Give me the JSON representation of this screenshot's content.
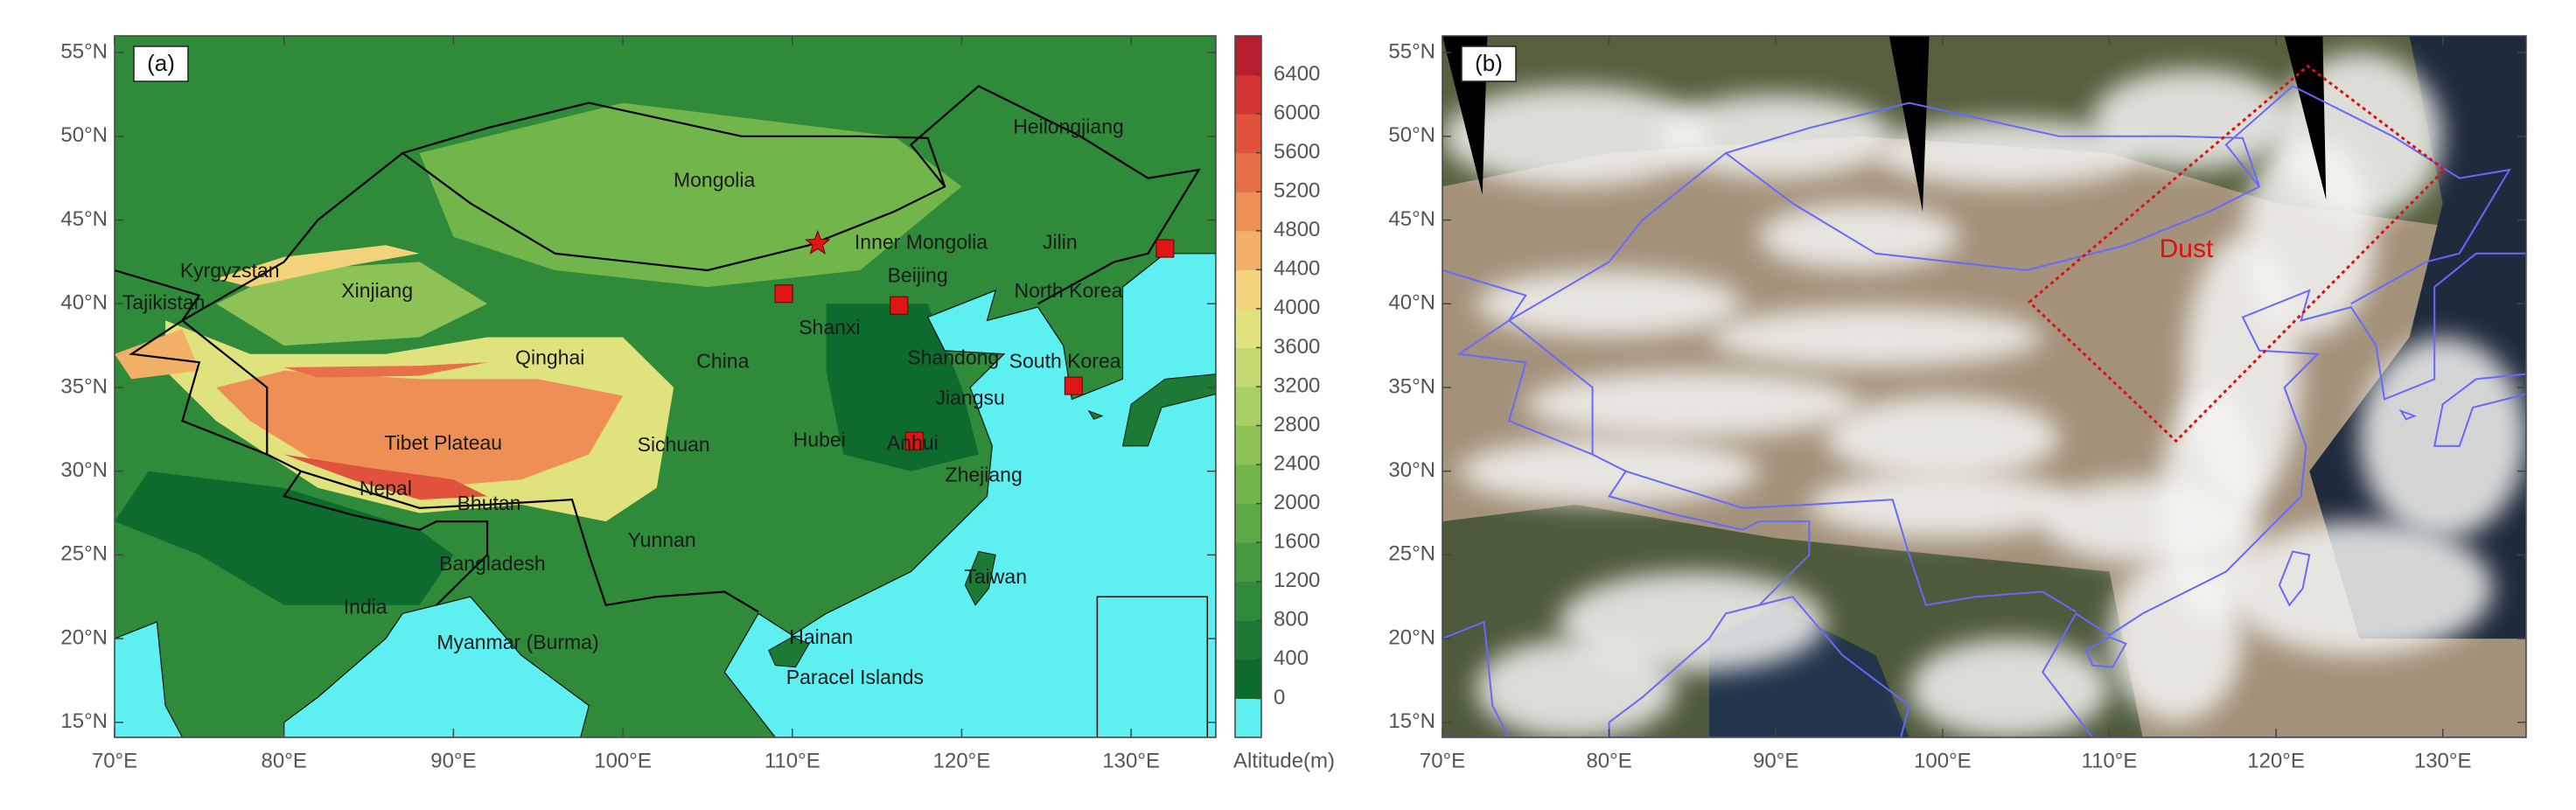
{
  "panels": [
    {
      "tag": "(a)",
      "xlim": [
        70,
        135
      ],
      "ylim": [
        14.1,
        56
      ],
      "xticks": [
        {
          "value": 70,
          "label": "70°E"
        },
        {
          "value": 80,
          "label": "80°E"
        },
        {
          "value": 90,
          "label": "90°E"
        },
        {
          "value": 100,
          "label": "100°E"
        },
        {
          "value": 110,
          "label": "110°E"
        },
        {
          "value": 120,
          "label": "120°E"
        },
        {
          "value": 130,
          "label": "130°E"
        }
      ],
      "yticks": [
        {
          "value": 15,
          "label": "15°N"
        },
        {
          "value": 20,
          "label": "20°N"
        },
        {
          "value": 25,
          "label": "25°N"
        },
        {
          "value": 30,
          "label": "30°N"
        },
        {
          "value": 35,
          "label": "35°N"
        },
        {
          "value": 40,
          "label": "40°N"
        },
        {
          "value": 45,
          "label": "45°N"
        },
        {
          "value": 50,
          "label": "50°N"
        },
        {
          "value": 55,
          "label": "55°N"
        }
      ],
      "places": [
        "Mongolia",
        "Heilongjiang",
        "Kyrgyzstan",
        "Tajikistan",
        "Xinjiang",
        "Inner Mongolia",
        "Jilin",
        "Beijing",
        "North Korea",
        "Shanxi",
        "Qinghai",
        "China",
        "Shandong",
        "South Korea",
        "Jiangsu",
        "Tibet Plateau",
        "Sichuan",
        "Hubei",
        "Anhui",
        "Zhejiang",
        "Nepal",
        "Bhutan",
        "Yunnan",
        "Bangladesh",
        "Taiwan",
        "India",
        "Myanmar (Burma)",
        "Hainan",
        "Paracel Islands"
      ],
      "colorbar": {
        "label": "Altitude(m)",
        "lim": [
          -400,
          6800
        ],
        "ticks": [
          0,
          400,
          800,
          1200,
          1600,
          2000,
          2400,
          2800,
          3200,
          3600,
          4000,
          4400,
          4800,
          5200,
          5600,
          6000,
          6400
        ],
        "colors": [
          "#5ef0f0",
          "#0e6b2e",
          "#1d7a34",
          "#2f8a3a",
          "#45993f",
          "#5ba845",
          "#72b54b",
          "#8cc256",
          "#a8cf62",
          "#c4da70",
          "#e0e27e",
          "#f2d27a",
          "#f2b066",
          "#ee9055",
          "#e87048",
          "#e0523c",
          "#d23434",
          "#b81f2e"
        ]
      }
    },
    {
      "tag": "(b)",
      "xlim": [
        70,
        135
      ],
      "ylim": [
        14.1,
        56
      ],
      "xticks": [
        {
          "value": 70,
          "label": "70°E"
        },
        {
          "value": 80,
          "label": "80°E"
        },
        {
          "value": 90,
          "label": "90°E"
        },
        {
          "value": 100,
          "label": "100°E"
        },
        {
          "value": 110,
          "label": "110°E"
        },
        {
          "value": 120,
          "label": "120°E"
        },
        {
          "value": 130,
          "label": "130°E"
        }
      ],
      "yticks": [
        {
          "value": 15,
          "label": "15°N"
        },
        {
          "value": 20,
          "label": "20°N"
        },
        {
          "value": 25,
          "label": "25°N"
        },
        {
          "value": 30,
          "label": "30°N"
        },
        {
          "value": 35,
          "label": "35°N"
        },
        {
          "value": 40,
          "label": "40°N"
        },
        {
          "value": 45,
          "label": "45°N"
        },
        {
          "value": 50,
          "label": "50°N"
        },
        {
          "value": 55,
          "label": "55°N"
        }
      ],
      "annotation": "Dust"
    }
  ]
}
